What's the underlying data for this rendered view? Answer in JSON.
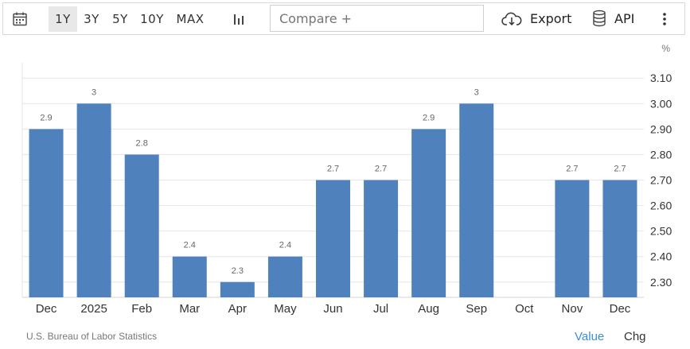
{
  "toolbar": {
    "ranges": [
      "1Y",
      "3Y",
      "5Y",
      "10Y",
      "MAX"
    ],
    "active_range": "1Y",
    "compare_placeholder": "Compare +",
    "export_label": "Export",
    "api_label": "API"
  },
  "icons": {
    "calendar": "calendar-icon",
    "chart_type": "bar-chart-icon",
    "export": "cloud-download-icon",
    "api": "database-icon",
    "more": "more-vertical-icon"
  },
  "footer": {
    "source": "U.S. Bureau of Labor Statistics",
    "value_label": "Value",
    "chg_label": "Chg"
  },
  "colors": {
    "bar": "#4f81bd",
    "grid": "#e6e6e6",
    "axis_text": "#333333",
    "label_text": "#666666",
    "value_link": "#3d8fd1"
  },
  "chart_data": {
    "type": "bar",
    "unit": "%",
    "categories": [
      "Dec",
      "2025",
      "Feb",
      "Mar",
      "Apr",
      "May",
      "Jun",
      "Jul",
      "Aug",
      "Sep",
      "Oct",
      "Nov",
      "Dec"
    ],
    "values": [
      2.9,
      3,
      2.8,
      2.4,
      2.3,
      2.4,
      2.7,
      2.7,
      2.9,
      3,
      null,
      2.7,
      2.7
    ],
    "value_labels": [
      "2.9",
      "3",
      "2.8",
      "2.4",
      "2.3",
      "2.4",
      "2.7",
      "2.7",
      "2.9",
      "3",
      "",
      "2.7",
      "2.7"
    ],
    "yticks": [
      "3.10",
      "3.00",
      "2.90",
      "2.80",
      "2.70",
      "2.60",
      "2.50",
      "2.40",
      "2.30"
    ],
    "ylim": [
      2.24,
      3.16
    ],
    "grid": true,
    "y_axis_side": "right",
    "legend": "none"
  }
}
